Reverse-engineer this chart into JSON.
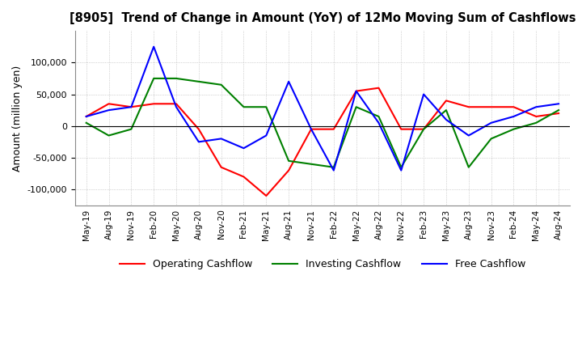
{
  "title": "[8905]  Trend of Change in Amount (YoY) of 12Mo Moving Sum of Cashflows",
  "ylabel": "Amount (million yen)",
  "x_labels": [
    "May-19",
    "Aug-19",
    "Nov-19",
    "Feb-20",
    "May-20",
    "Aug-20",
    "Nov-20",
    "Feb-21",
    "May-21",
    "Aug-21",
    "Nov-21",
    "Feb-22",
    "May-22",
    "Aug-22",
    "Nov-22",
    "Feb-23",
    "May-23",
    "Aug-23",
    "Nov-23",
    "Feb-24",
    "May-24",
    "Aug-24"
  ],
  "operating": [
    15000,
    35000,
    30000,
    35000,
    35000,
    -5000,
    -65000,
    -80000,
    -110000,
    -70000,
    -5000,
    -5000,
    55000,
    60000,
    -5000,
    -5000,
    40000,
    30000,
    30000,
    30000,
    15000,
    20000
  ],
  "investing": [
    5000,
    -15000,
    -5000,
    75000,
    75000,
    70000,
    65000,
    30000,
    30000,
    -55000,
    -60000,
    -65000,
    30000,
    15000,
    -65000,
    -5000,
    25000,
    -65000,
    -20000,
    -5000,
    5000,
    25000
  ],
  "free": [
    15000,
    25000,
    30000,
    125000,
    30000,
    -25000,
    -20000,
    -35000,
    -15000,
    70000,
    -5000,
    -70000,
    55000,
    5000,
    -70000,
    50000,
    10000,
    -15000,
    5000,
    15000,
    30000,
    35000
  ],
  "operating_color": "#ff0000",
  "investing_color": "#008000",
  "free_color": "#0000ff",
  "ylim": [
    -125000,
    150000
  ],
  "yticks": [
    -100000,
    -50000,
    0,
    50000,
    100000
  ],
  "background_color": "#ffffff",
  "grid_color": "#b0b0b0"
}
